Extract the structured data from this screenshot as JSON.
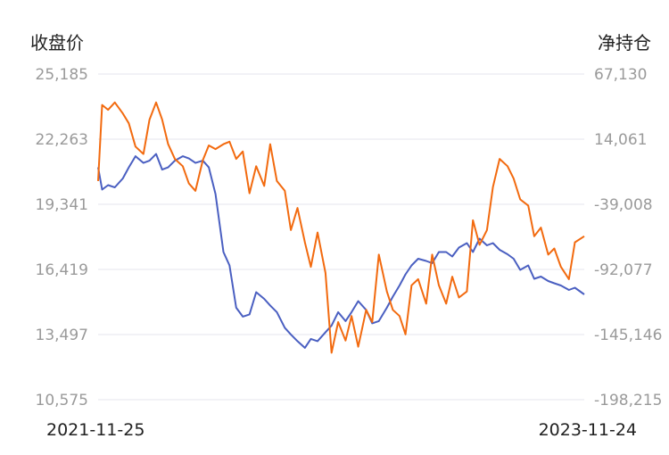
{
  "chart_data": {
    "type": "line",
    "left_axis": {
      "title": "收盘价",
      "ticks": [
        "25,185",
        "22,263",
        "19,341",
        "16,419",
        "13,497",
        "10,575"
      ],
      "range": [
        10575,
        25185
      ]
    },
    "right_axis": {
      "title": "净持仓",
      "ticks": [
        "67,130",
        "14,061",
        "-39,008",
        "-92,077",
        "-145,146",
        "-198,215"
      ],
      "range": [
        -198215,
        67130
      ]
    },
    "x_labels": {
      "start": "2021-11-25",
      "end": "2023-11-24"
    },
    "x_range": [
      "2021-11-25",
      "2023-11-24"
    ],
    "grid": true,
    "series": [
      {
        "axis": "left",
        "color": "#4a5fc1",
        "points": [
          [
            "2021-11-25",
            21000
          ],
          [
            "2021-12-01",
            20000
          ],
          [
            "2021-12-10",
            20200
          ],
          [
            "2021-12-20",
            20100
          ],
          [
            "2022-01-01",
            20500
          ],
          [
            "2022-01-10",
            21000
          ],
          [
            "2022-01-20",
            21500
          ],
          [
            "2022-02-01",
            21200
          ],
          [
            "2022-02-10",
            21300
          ],
          [
            "2022-02-20",
            21600
          ],
          [
            "2022-03-01",
            20900
          ],
          [
            "2022-03-10",
            21000
          ],
          [
            "2022-03-20",
            21300
          ],
          [
            "2022-04-01",
            21500
          ],
          [
            "2022-04-10",
            21400
          ],
          [
            "2022-04-20",
            21200
          ],
          [
            "2022-05-01",
            21300
          ],
          [
            "2022-05-10",
            21000
          ],
          [
            "2022-05-20",
            19800
          ],
          [
            "2022-06-01",
            17200
          ],
          [
            "2022-06-10",
            16600
          ],
          [
            "2022-06-20",
            14700
          ],
          [
            "2022-06-30",
            14300
          ],
          [
            "2022-07-10",
            14400
          ],
          [
            "2022-07-20",
            15400
          ],
          [
            "2022-08-01",
            15100
          ],
          [
            "2022-08-10",
            14800
          ],
          [
            "2022-08-20",
            14500
          ],
          [
            "2022-09-01",
            13800
          ],
          [
            "2022-09-10",
            13500
          ],
          [
            "2022-09-20",
            13200
          ],
          [
            "2022-10-01",
            12900
          ],
          [
            "2022-10-10",
            13300
          ],
          [
            "2022-10-20",
            13200
          ],
          [
            "2022-11-01",
            13600
          ],
          [
            "2022-11-10",
            13900
          ],
          [
            "2022-11-20",
            14500
          ],
          [
            "2022-12-01",
            14100
          ],
          [
            "2022-12-10",
            14500
          ],
          [
            "2022-12-20",
            15000
          ],
          [
            "2023-01-01",
            14600
          ],
          [
            "2023-01-10",
            14000
          ],
          [
            "2023-01-20",
            14100
          ],
          [
            "2023-02-01",
            14700
          ],
          [
            "2023-02-10",
            15200
          ],
          [
            "2023-02-20",
            15700
          ],
          [
            "2023-03-01",
            16200
          ],
          [
            "2023-03-10",
            16600
          ],
          [
            "2023-03-20",
            16900
          ],
          [
            "2023-04-01",
            16800
          ],
          [
            "2023-04-10",
            16700
          ],
          [
            "2023-04-20",
            17200
          ],
          [
            "2023-05-01",
            17200
          ],
          [
            "2023-05-10",
            17000
          ],
          [
            "2023-05-20",
            17400
          ],
          [
            "2023-06-01",
            17600
          ],
          [
            "2023-06-10",
            17200
          ],
          [
            "2023-06-20",
            17800
          ],
          [
            "2023-07-01",
            17500
          ],
          [
            "2023-07-10",
            17600
          ],
          [
            "2023-07-20",
            17300
          ],
          [
            "2023-08-01",
            17100
          ],
          [
            "2023-08-10",
            16900
          ],
          [
            "2023-08-20",
            16400
          ],
          [
            "2023-09-01",
            16600
          ],
          [
            "2023-09-10",
            16000
          ],
          [
            "2023-09-20",
            16100
          ],
          [
            "2023-10-01",
            15900
          ],
          [
            "2023-10-10",
            15800
          ],
          [
            "2023-10-20",
            15700
          ],
          [
            "2023-11-01",
            15500
          ],
          [
            "2023-11-10",
            15600
          ],
          [
            "2023-11-24",
            15300
          ]
        ]
      },
      {
        "axis": "right",
        "color": "#f26a0f",
        "points": [
          [
            "2021-11-25",
            -20000
          ],
          [
            "2021-12-01",
            42000
          ],
          [
            "2021-12-10",
            38000
          ],
          [
            "2021-12-20",
            44000
          ],
          [
            "2022-01-01",
            35000
          ],
          [
            "2022-01-10",
            27000
          ],
          [
            "2022-01-20",
            8000
          ],
          [
            "2022-02-01",
            2000
          ],
          [
            "2022-02-10",
            30000
          ],
          [
            "2022-02-20",
            44000
          ],
          [
            "2022-03-01",
            30000
          ],
          [
            "2022-03-10",
            10000
          ],
          [
            "2022-03-20",
            -2000
          ],
          [
            "2022-04-01",
            -8000
          ],
          [
            "2022-04-10",
            -22000
          ],
          [
            "2022-04-20",
            -28000
          ],
          [
            "2022-05-01",
            -3000
          ],
          [
            "2022-05-10",
            9000
          ],
          [
            "2022-05-20",
            6000
          ],
          [
            "2022-06-01",
            10000
          ],
          [
            "2022-06-10",
            12000
          ],
          [
            "2022-06-20",
            -2000
          ],
          [
            "2022-06-30",
            4000
          ],
          [
            "2022-07-10",
            -30000
          ],
          [
            "2022-07-20",
            -8000
          ],
          [
            "2022-08-01",
            -24000
          ],
          [
            "2022-08-10",
            10000
          ],
          [
            "2022-08-20",
            -20000
          ],
          [
            "2022-09-01",
            -28000
          ],
          [
            "2022-09-10",
            -60000
          ],
          [
            "2022-09-20",
            -42000
          ],
          [
            "2022-10-01",
            -70000
          ],
          [
            "2022-10-10",
            -90000
          ],
          [
            "2022-10-20",
            -62000
          ],
          [
            "2022-11-01",
            -95000
          ],
          [
            "2022-11-10",
            -160000
          ],
          [
            "2022-11-20",
            -135000
          ],
          [
            "2022-12-01",
            -150000
          ],
          [
            "2022-12-10",
            -130000
          ],
          [
            "2022-12-20",
            -155000
          ],
          [
            "2023-01-01",
            -125000
          ],
          [
            "2023-01-10",
            -135000
          ],
          [
            "2023-01-20",
            -80000
          ],
          [
            "2023-02-01",
            -110000
          ],
          [
            "2023-02-10",
            -125000
          ],
          [
            "2023-02-20",
            -130000
          ],
          [
            "2023-03-01",
            -145000
          ],
          [
            "2023-03-10",
            -105000
          ],
          [
            "2023-03-20",
            -100000
          ],
          [
            "2023-04-01",
            -120000
          ],
          [
            "2023-04-10",
            -80000
          ],
          [
            "2023-04-20",
            -105000
          ],
          [
            "2023-05-01",
            -120000
          ],
          [
            "2023-05-10",
            -98000
          ],
          [
            "2023-05-20",
            -115000
          ],
          [
            "2023-06-01",
            -110000
          ],
          [
            "2023-06-10",
            -52000
          ],
          [
            "2023-06-20",
            -72000
          ],
          [
            "2023-07-01",
            -60000
          ],
          [
            "2023-07-10",
            -25000
          ],
          [
            "2023-07-20",
            -2000
          ],
          [
            "2023-08-01",
            -8000
          ],
          [
            "2023-08-10",
            -18000
          ],
          [
            "2023-08-20",
            -35000
          ],
          [
            "2023-09-01",
            -40000
          ],
          [
            "2023-09-10",
            -65000
          ],
          [
            "2023-09-20",
            -58000
          ],
          [
            "2023-10-01",
            -80000
          ],
          [
            "2023-10-10",
            -75000
          ],
          [
            "2023-10-20",
            -90000
          ],
          [
            "2023-11-01",
            -100000
          ],
          [
            "2023-11-10",
            -70000
          ],
          [
            "2023-11-24",
            -65000
          ]
        ]
      }
    ]
  }
}
